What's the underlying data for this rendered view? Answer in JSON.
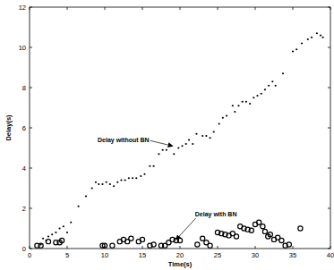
{
  "chart_data": {
    "type": "scatter",
    "x_label": "Time(s)",
    "y_label": "Delay(s)",
    "xlim": [
      0,
      40
    ],
    "ylim": [
      0,
      12
    ],
    "xticks": [
      0,
      5,
      10,
      15,
      20,
      25,
      30,
      35,
      40
    ],
    "yticks": [
      0,
      2,
      4,
      6,
      8,
      10,
      12
    ],
    "grid": false,
    "series": [
      {
        "color": "#000000",
        "marker": "dot",
        "x": [
          1.5,
          1.8,
          2.2,
          2.5,
          3,
          3.5,
          4,
          4.5,
          5,
          5.5,
          6.5,
          7.5,
          8.3,
          8.8,
          9.2,
          9.7,
          10.2,
          10.7,
          11.2,
          11.7,
          12.2,
          12.7,
          13.2,
          13.7,
          14.2,
          14.8,
          15.3,
          16,
          16.5,
          17.2,
          17.7,
          18.2,
          18.8,
          19.2,
          19.8,
          20.3,
          20.8,
          21.2,
          21.7,
          22.2,
          23,
          23.5,
          24,
          24.5,
          25.2,
          25.7,
          26.2,
          27,
          27.3,
          27.8,
          28.3,
          28.8,
          29.3,
          29.8,
          30.3,
          30.8,
          31.3,
          31.8,
          32.3,
          32.7,
          33.7,
          35,
          35.5,
          36.2,
          37,
          37.5,
          38.2,
          38.7,
          39
        ],
        "values": [
          0.2,
          0.5,
          0.4,
          0.6,
          0.7,
          0.8,
          1.0,
          1.1,
          0.8,
          1.3,
          2.1,
          2.6,
          3.0,
          3.3,
          3.2,
          3.2,
          3.3,
          3.2,
          3.1,
          3.3,
          3.4,
          3.4,
          3.5,
          3.5,
          3.5,
          3.6,
          3.7,
          4.1,
          4.1,
          4.7,
          4.9,
          4.9,
          5.1,
          4.7,
          5.0,
          5.1,
          5.2,
          5.4,
          5.2,
          5.7,
          5.6,
          5.6,
          5.5,
          5.8,
          6.2,
          6.5,
          6.6,
          7.1,
          6.8,
          7.1,
          7.3,
          7.3,
          7.2,
          7.5,
          7.6,
          7.7,
          7.9,
          8.1,
          8.3,
          8.1,
          8.7,
          9.8,
          9.9,
          10.2,
          10.4,
          10.5,
          10.7,
          10.6,
          10.5
        ]
      },
      {
        "color": "#000000",
        "marker": "circle",
        "x": [
          1,
          1.5,
          2.5,
          3.5,
          4,
          4.3,
          9.7,
          10,
          11,
          12,
          12.5,
          13,
          13.5,
          14.5,
          15,
          16,
          16.5,
          17.5,
          18,
          18.5,
          19,
          19.5,
          20,
          22.3,
          23,
          23.5,
          24,
          25,
          25.5,
          26,
          26.5,
          27,
          27.5,
          28,
          28.5,
          29,
          29.5,
          30,
          30.5,
          31,
          31.3,
          31.7,
          32,
          32.5,
          33,
          33.5,
          34,
          34.5,
          36
        ],
        "values": [
          0.15,
          0.15,
          0.35,
          0.3,
          0.3,
          0.4,
          0.15,
          0.15,
          0.15,
          0.35,
          0.45,
          0.35,
          0.5,
          0.35,
          0.45,
          0.15,
          0.2,
          0.15,
          0.15,
          0.3,
          0.45,
          0.4,
          0.4,
          0.2,
          0.5,
          0.3,
          0.15,
          0.8,
          0.75,
          0.7,
          0.65,
          0.75,
          0.6,
          1.1,
          1.0,
          0.95,
          0.9,
          1.2,
          1.3,
          1.1,
          0.85,
          0.6,
          0.7,
          0.45,
          0.55,
          0.4,
          0.15,
          0.2,
          1.0
        ]
      }
    ],
    "annotations": [
      {
        "text": "Delay without BN",
        "x": 19,
        "y": 5.1
      },
      {
        "text": "Delay with BN",
        "x": 19.5,
        "y": 0.45
      }
    ]
  }
}
